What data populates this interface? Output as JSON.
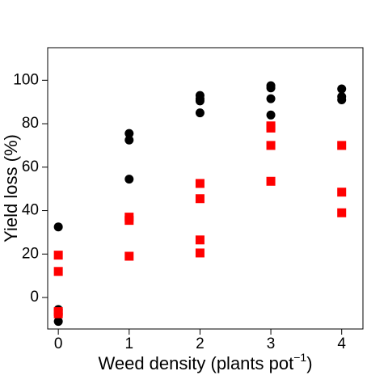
{
  "chart_data": {
    "type": "scatter",
    "xlabel": "Weed density (plants pot",
    "xlabel_sup": "−1",
    "xlabel_end": ")",
    "ylabel": "Yield loss (%)",
    "xlim": [
      -0.15,
      4.3
    ],
    "ylim": [
      -14.5,
      115
    ],
    "x_ticks": [
      0,
      1,
      2,
      3,
      4
    ],
    "y_ticks": [
      0,
      20,
      40,
      60,
      80,
      100
    ],
    "grid": false,
    "legend": "none",
    "series": [
      {
        "marker": "circle",
        "color": "#000000",
        "points": [
          {
            "x": 0,
            "y": 32.5
          },
          {
            "x": 0,
            "y": -5.5
          },
          {
            "x": 0,
            "y": -7.5
          },
          {
            "x": 0,
            "y": -11
          },
          {
            "x": 1,
            "y": 75.5
          },
          {
            "x": 1,
            "y": 72.5
          },
          {
            "x": 1,
            "y": 54.5
          },
          {
            "x": 2,
            "y": 93
          },
          {
            "x": 2,
            "y": 91.5
          },
          {
            "x": 2,
            "y": 90.5
          },
          {
            "x": 2,
            "y": 85
          },
          {
            "x": 3,
            "y": 97.5
          },
          {
            "x": 3,
            "y": 96.5
          },
          {
            "x": 3,
            "y": 91.5
          },
          {
            "x": 3,
            "y": 84
          },
          {
            "x": 4,
            "y": 96
          },
          {
            "x": 4,
            "y": 92.5
          },
          {
            "x": 4,
            "y": 91
          }
        ]
      },
      {
        "marker": "square",
        "color": "#ff0000",
        "points": [
          {
            "x": 0,
            "y": 19.5
          },
          {
            "x": 0,
            "y": 12
          },
          {
            "x": 0,
            "y": -6.5
          },
          {
            "x": 0,
            "y": -7.5
          },
          {
            "x": 1,
            "y": 37
          },
          {
            "x": 1,
            "y": 35.5
          },
          {
            "x": 1,
            "y": 19
          },
          {
            "x": 2,
            "y": 52.5
          },
          {
            "x": 2,
            "y": 45.5
          },
          {
            "x": 2,
            "y": 26.5
          },
          {
            "x": 2,
            "y": 20.5
          },
          {
            "x": 3,
            "y": 79
          },
          {
            "x": 3,
            "y": 78
          },
          {
            "x": 3,
            "y": 70
          },
          {
            "x": 3,
            "y": 53.5
          },
          {
            "x": 4,
            "y": 70
          },
          {
            "x": 4,
            "y": 48.5
          },
          {
            "x": 4,
            "y": 39
          }
        ]
      }
    ]
  }
}
